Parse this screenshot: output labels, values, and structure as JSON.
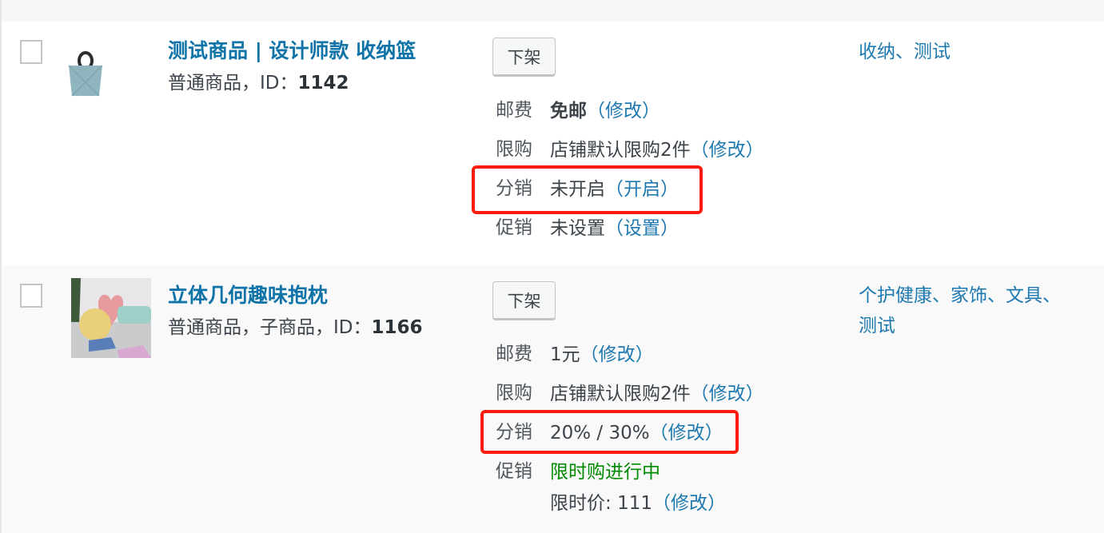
{
  "products": [
    {
      "title": "测试商品 | 设计师款 收纳篮",
      "type": "普通商品，ID：",
      "id": "1142",
      "button": "下架",
      "postage": {
        "label": "邮费",
        "value": "免邮",
        "link": "（修改）"
      },
      "limit": {
        "label": "限购",
        "value": "店铺默认限购2件",
        "link": "（修改）"
      },
      "distribution": {
        "label": "分销",
        "value": "未开启",
        "link": "（开启）"
      },
      "promotion": {
        "label": "促销",
        "value": "未设置",
        "link": "（设置）"
      },
      "categories": "收纳、测试"
    },
    {
      "title": "立体几何趣味抱枕",
      "type": "普通商品，子商品，ID：",
      "id": "1166",
      "button": "下架",
      "postage": {
        "label": "邮费",
        "value": "1元",
        "link": "（修改）"
      },
      "limit": {
        "label": "限购",
        "value": "店铺默认限购2件",
        "link": "（修改）"
      },
      "distribution": {
        "label": "分销",
        "value": "20% / 30%",
        "link": "（修改）"
      },
      "promotion": {
        "label": "促销",
        "value": "限时购进行中",
        "price_label": "限时价: ",
        "price": "111",
        "link": "（修改）"
      },
      "categories_line1": "个护健康、家饰、文具、",
      "categories_line2": "测试"
    }
  ],
  "colors": {
    "link": "#1d79b0",
    "title": "#0f73a8",
    "highlight_box": "#ff1a0e",
    "active_promo": "#008a00"
  }
}
